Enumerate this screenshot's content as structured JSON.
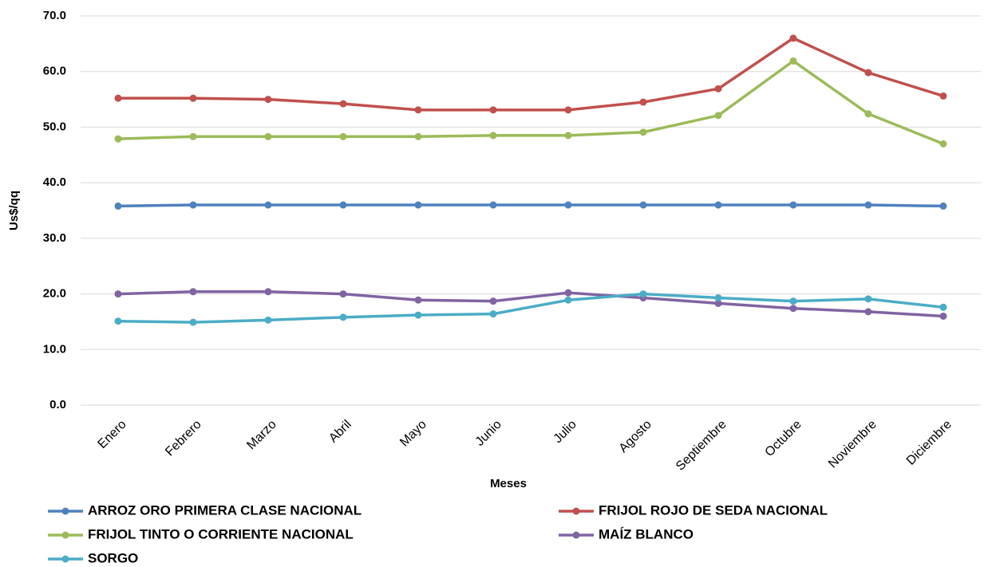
{
  "chart_data": {
    "type": "line",
    "x_label": "Meses",
    "y_label": "Us$/qq",
    "categories": [
      "Enero",
      "Febrero",
      "Marzo",
      "Abril",
      "Mayo",
      "Junio",
      "Julio",
      "Agosto",
      "Septiembre",
      "Octubre",
      "Noviembre",
      "Diciembre"
    ],
    "series": [
      {
        "name": "ARROZ ORO PRIMERA CLASE NACIONAL",
        "color": "#4f81bd",
        "values": [
          35.8,
          36.0,
          36.0,
          36.0,
          36.0,
          36.0,
          36.0,
          36.0,
          36.0,
          36.0,
          36.0,
          35.8
        ]
      },
      {
        "name": "FRIJOL  ROJO DE SEDA NACIONAL",
        "color": "#c0504d",
        "values": [
          55.2,
          55.2,
          55.0,
          54.2,
          53.1,
          53.1,
          53.1,
          54.5,
          56.9,
          66.0,
          59.8,
          55.6
        ]
      },
      {
        "name": "FRIJOL  TINTO O CORRIENTE NACIONAL",
        "color": "#9bbb59",
        "values": [
          47.9,
          48.3,
          48.3,
          48.3,
          48.3,
          48.5,
          48.5,
          49.1,
          52.1,
          61.9,
          52.4,
          47.0
        ]
      },
      {
        "name": "MAÍZ BLANCO",
        "color": "#8064a2",
        "values": [
          20.0,
          20.4,
          20.4,
          20.0,
          18.9,
          18.7,
          20.2,
          19.3,
          18.3,
          17.4,
          16.8,
          16.0
        ]
      },
      {
        "name": "SORGO",
        "color": "#4bacc6",
        "values": [
          15.1,
          14.9,
          15.3,
          15.8,
          16.2,
          16.4,
          18.9,
          20.0,
          19.3,
          18.7,
          19.1,
          17.6
        ]
      }
    ],
    "ylim": [
      0,
      70
    ],
    "yticks": [
      {
        "value": 0,
        "label": "0.0"
      },
      {
        "value": 10,
        "label": "10.0"
      },
      {
        "value": 20,
        "label": "20.0"
      },
      {
        "value": 30,
        "label": "30.0"
      },
      {
        "value": 40,
        "label": "40.0"
      },
      {
        "value": 50,
        "label": "50.0"
      },
      {
        "value": 60,
        "label": "60.0"
      },
      {
        "value": 70,
        "label": "70.0"
      }
    ],
    "grid": true,
    "legend": "bottom"
  }
}
